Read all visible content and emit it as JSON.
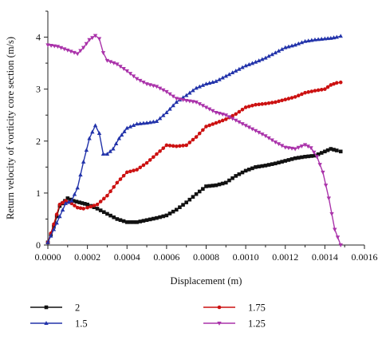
{
  "chart_data": {
    "type": "line",
    "xlabel": "Displacement (m)",
    "ylabel": "Return velocity of vorticity core section (m/s)",
    "xlim": [
      0,
      0.0016
    ],
    "ylim": [
      0,
      4.5
    ],
    "xticks": [
      "0.0000",
      "0.0002",
      "0.0004",
      "0.0006",
      "0.0008",
      "0.0010",
      "0.0012",
      "0.0014",
      "0.0016"
    ],
    "yticks": [
      "0",
      "1",
      "2",
      "3",
      "4"
    ],
    "grid": false,
    "legend_position": "bottom",
    "series": [
      {
        "name": "2",
        "color": "#111111",
        "marker": "square",
        "points": [
          [
            0,
            0.05
          ],
          [
            3e-05,
            0.35
          ],
          [
            6e-05,
            0.75
          ],
          [
            0.0001,
            0.9
          ],
          [
            0.00013,
            0.85
          ],
          [
            0.00016,
            0.82
          ],
          [
            0.0002,
            0.78
          ],
          [
            0.00025,
            0.7
          ],
          [
            0.0003,
            0.6
          ],
          [
            0.00035,
            0.5
          ],
          [
            0.0004,
            0.44
          ],
          [
            0.00045,
            0.44
          ],
          [
            0.0005,
            0.48
          ],
          [
            0.00055,
            0.52
          ],
          [
            0.0006,
            0.57
          ],
          [
            0.00065,
            0.68
          ],
          [
            0.0007,
            0.82
          ],
          [
            0.00075,
            0.98
          ],
          [
            0.0008,
            1.13
          ],
          [
            0.00085,
            1.15
          ],
          [
            0.0009,
            1.2
          ],
          [
            0.00095,
            1.33
          ],
          [
            0.001,
            1.43
          ],
          [
            0.00105,
            1.5
          ],
          [
            0.0011,
            1.53
          ],
          [
            0.00115,
            1.57
          ],
          [
            0.0012,
            1.62
          ],
          [
            0.00125,
            1.67
          ],
          [
            0.0013,
            1.7
          ],
          [
            0.00135,
            1.72
          ],
          [
            0.0014,
            1.8
          ],
          [
            0.00143,
            1.85
          ],
          [
            0.00146,
            1.82
          ],
          [
            0.00148,
            1.8
          ]
        ]
      },
      {
        "name": "1.75",
        "color": "#cc1111",
        "marker": "circle",
        "points": [
          [
            0,
            0.05
          ],
          [
            3e-05,
            0.4
          ],
          [
            6e-05,
            0.78
          ],
          [
            9e-05,
            0.85
          ],
          [
            0.00012,
            0.8
          ],
          [
            0.00015,
            0.72
          ],
          [
            0.00018,
            0.7
          ],
          [
            0.0002,
            0.72
          ],
          [
            0.00025,
            0.78
          ],
          [
            0.0003,
            0.95
          ],
          [
            0.00035,
            1.2
          ],
          [
            0.0004,
            1.4
          ],
          [
            0.00045,
            1.45
          ],
          [
            0.0005,
            1.58
          ],
          [
            0.00055,
            1.75
          ],
          [
            0.0006,
            1.92
          ],
          [
            0.00065,
            1.9
          ],
          [
            0.0007,
            1.92
          ],
          [
            0.00075,
            2.08
          ],
          [
            0.0008,
            2.28
          ],
          [
            0.00085,
            2.35
          ],
          [
            0.0009,
            2.42
          ],
          [
            0.00095,
            2.52
          ],
          [
            0.001,
            2.65
          ],
          [
            0.00105,
            2.7
          ],
          [
            0.0011,
            2.72
          ],
          [
            0.00115,
            2.75
          ],
          [
            0.0012,
            2.8
          ],
          [
            0.00125,
            2.85
          ],
          [
            0.0013,
            2.93
          ],
          [
            0.00135,
            2.97
          ],
          [
            0.0014,
            3.0
          ],
          [
            0.00143,
            3.08
          ],
          [
            0.00146,
            3.12
          ],
          [
            0.00148,
            3.13
          ]
        ]
      },
      {
        "name": "1.5",
        "color": "#2233aa",
        "marker": "triangle-up",
        "points": [
          [
            0,
            0.05
          ],
          [
            3e-05,
            0.3
          ],
          [
            6e-05,
            0.55
          ],
          [
            9e-05,
            0.8
          ],
          [
            0.00012,
            0.85
          ],
          [
            0.00015,
            1.1
          ],
          [
            0.00018,
            1.6
          ],
          [
            0.00021,
            2.05
          ],
          [
            0.00024,
            2.3
          ],
          [
            0.00026,
            2.15
          ],
          [
            0.00028,
            1.75
          ],
          [
            0.0003,
            1.75
          ],
          [
            0.00033,
            1.85
          ],
          [
            0.00036,
            2.05
          ],
          [
            0.0004,
            2.25
          ],
          [
            0.00045,
            2.33
          ],
          [
            0.0005,
            2.35
          ],
          [
            0.00055,
            2.38
          ],
          [
            0.0006,
            2.55
          ],
          [
            0.00065,
            2.75
          ],
          [
            0.0007,
            2.88
          ],
          [
            0.00075,
            3.02
          ],
          [
            0.0008,
            3.1
          ],
          [
            0.00085,
            3.15
          ],
          [
            0.0009,
            3.25
          ],
          [
            0.00095,
            3.35
          ],
          [
            0.001,
            3.45
          ],
          [
            0.00105,
            3.52
          ],
          [
            0.0011,
            3.6
          ],
          [
            0.00115,
            3.7
          ],
          [
            0.0012,
            3.8
          ],
          [
            0.00125,
            3.85
          ],
          [
            0.0013,
            3.92
          ],
          [
            0.00135,
            3.95
          ],
          [
            0.0014,
            3.97
          ],
          [
            0.00143,
            3.98
          ],
          [
            0.00146,
            4.0
          ],
          [
            0.00148,
            4.02
          ]
        ]
      },
      {
        "name": "1.25",
        "color": "#aa33aa",
        "marker": "triangle-down",
        "points": [
          [
            0,
            3.85
          ],
          [
            5e-05,
            3.82
          ],
          [
            0.0001,
            3.75
          ],
          [
            0.00015,
            3.68
          ],
          [
            0.00018,
            3.8
          ],
          [
            0.00021,
            3.95
          ],
          [
            0.00024,
            4.03
          ],
          [
            0.00026,
            3.97
          ],
          [
            0.00028,
            3.7
          ],
          [
            0.0003,
            3.55
          ],
          [
            0.00035,
            3.48
          ],
          [
            0.0004,
            3.35
          ],
          [
            0.00045,
            3.2
          ],
          [
            0.0005,
            3.1
          ],
          [
            0.00055,
            3.05
          ],
          [
            0.0006,
            2.95
          ],
          [
            0.00065,
            2.82
          ],
          [
            0.0007,
            2.78
          ],
          [
            0.00075,
            2.75
          ],
          [
            0.0008,
            2.65
          ],
          [
            0.00085,
            2.55
          ],
          [
            0.0009,
            2.5
          ],
          [
            0.00095,
            2.4
          ],
          [
            0.001,
            2.3
          ],
          [
            0.00105,
            2.2
          ],
          [
            0.0011,
            2.1
          ],
          [
            0.00115,
            1.98
          ],
          [
            0.0012,
            1.88
          ],
          [
            0.00125,
            1.85
          ],
          [
            0.0013,
            1.93
          ],
          [
            0.00133,
            1.87
          ],
          [
            0.00136,
            1.7
          ],
          [
            0.00139,
            1.4
          ],
          [
            0.00142,
            0.9
          ],
          [
            0.00145,
            0.3
          ],
          [
            0.00148,
            0.0
          ]
        ]
      }
    ]
  }
}
